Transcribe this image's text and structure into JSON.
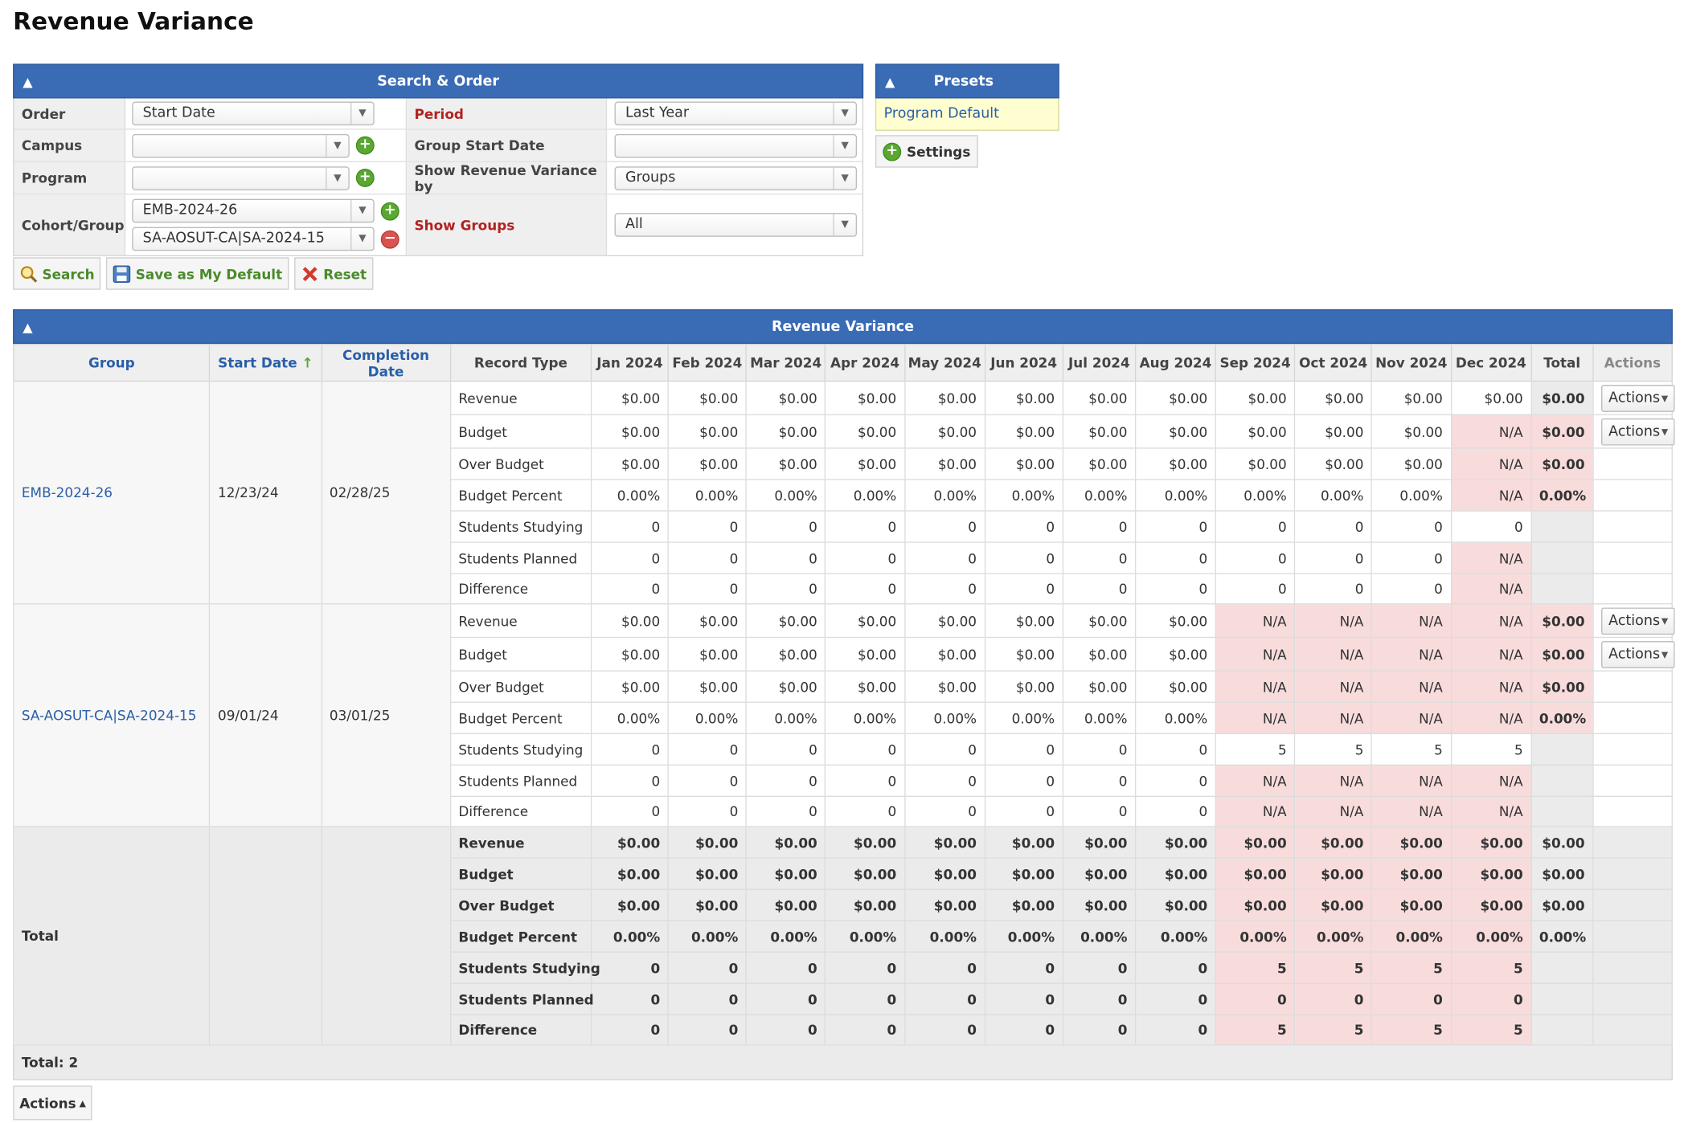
{
  "page_title": "Revenue Variance",
  "search": {
    "title": "Search & Order",
    "order_label": "Order",
    "order_value": "Start Date",
    "period_label": "Period",
    "period_value": "Last Year",
    "campus_label": "Campus",
    "campus_value": "",
    "group_start_label": "Group Start Date",
    "group_start_value": "",
    "program_label": "Program",
    "program_value": "",
    "show_by_label": "Show Revenue Variance by",
    "show_by_value": "Groups",
    "cohort_label": "Cohort/Group",
    "cohort_values": [
      "EMB-2024-26",
      "SA-AOSUT-CA|SA-2024-15"
    ],
    "show_groups_label": "Show Groups",
    "show_groups_value": "All"
  },
  "buttons": {
    "search": "Search",
    "save_default": "Save as My Default",
    "reset": "Reset"
  },
  "presets": {
    "title": "Presets",
    "items": [
      "Program Default"
    ],
    "settings": "Settings"
  },
  "table": {
    "title": "Revenue Variance",
    "headers": [
      "Group",
      "Start Date",
      "Completion Date",
      "Record Type",
      "Jan 2024",
      "Feb 2024",
      "Mar 2024",
      "Apr 2024",
      "May 2024",
      "Jun 2024",
      "Jul 2024",
      "Aug 2024",
      "Sep 2024",
      "Oct 2024",
      "Nov 2024",
      "Dec 2024",
      "Total",
      "Actions"
    ],
    "action_label": "Actions",
    "groups": [
      {
        "name": "EMB-2024-26",
        "start": "12/23/24",
        "completion": "02/28/25",
        "rows": [
          {
            "type": "Revenue",
            "cells": [
              "$0.00",
              "$0.00",
              "$0.00",
              "$0.00",
              "$0.00",
              "$0.00",
              "$0.00",
              "$0.00",
              "$0.00",
              "$0.00",
              "$0.00",
              "$0.00"
            ],
            "total": "$0.00",
            "actions": true
          },
          {
            "type": "Budget",
            "cells": [
              "$0.00",
              "$0.00",
              "$0.00",
              "$0.00",
              "$0.00",
              "$0.00",
              "$0.00",
              "$0.00",
              "$0.00",
              "$0.00",
              "$0.00",
              "N/A"
            ],
            "total": "$0.00",
            "actions": true
          },
          {
            "type": "Over Budget",
            "cells": [
              "$0.00",
              "$0.00",
              "$0.00",
              "$0.00",
              "$0.00",
              "$0.00",
              "$0.00",
              "$0.00",
              "$0.00",
              "$0.00",
              "$0.00",
              "N/A"
            ],
            "total": "$0.00",
            "actions": false
          },
          {
            "type": "Budget Percent",
            "cells": [
              "0.00%",
              "0.00%",
              "0.00%",
              "0.00%",
              "0.00%",
              "0.00%",
              "0.00%",
              "0.00%",
              "0.00%",
              "0.00%",
              "0.00%",
              "N/A"
            ],
            "total": "0.00%",
            "actions": false
          },
          {
            "type": "Students Studying",
            "cells": [
              "0",
              "0",
              "0",
              "0",
              "0",
              "0",
              "0",
              "0",
              "0",
              "0",
              "0",
              "0"
            ],
            "total": "",
            "actions": false
          },
          {
            "type": "Students Planned",
            "cells": [
              "0",
              "0",
              "0",
              "0",
              "0",
              "0",
              "0",
              "0",
              "0",
              "0",
              "0",
              "N/A"
            ],
            "total": "",
            "actions": false
          },
          {
            "type": "Difference",
            "cells": [
              "0",
              "0",
              "0",
              "0",
              "0",
              "0",
              "0",
              "0",
              "0",
              "0",
              "0",
              "N/A"
            ],
            "total": "",
            "actions": false
          }
        ]
      },
      {
        "name": "SA-AOSUT-CA|SA-2024-15",
        "start": "09/01/24",
        "completion": "03/01/25",
        "rows": [
          {
            "type": "Revenue",
            "cells": [
              "$0.00",
              "$0.00",
              "$0.00",
              "$0.00",
              "$0.00",
              "$0.00",
              "$0.00",
              "$0.00",
              "N/A",
              "N/A",
              "N/A",
              "N/A"
            ],
            "total": "$0.00",
            "actions": true
          },
          {
            "type": "Budget",
            "cells": [
              "$0.00",
              "$0.00",
              "$0.00",
              "$0.00",
              "$0.00",
              "$0.00",
              "$0.00",
              "$0.00",
              "N/A",
              "N/A",
              "N/A",
              "N/A"
            ],
            "total": "$0.00",
            "actions": true
          },
          {
            "type": "Over Budget",
            "cells": [
              "$0.00",
              "$0.00",
              "$0.00",
              "$0.00",
              "$0.00",
              "$0.00",
              "$0.00",
              "$0.00",
              "N/A",
              "N/A",
              "N/A",
              "N/A"
            ],
            "total": "$0.00",
            "actions": false
          },
          {
            "type": "Budget Percent",
            "cells": [
              "0.00%",
              "0.00%",
              "0.00%",
              "0.00%",
              "0.00%",
              "0.00%",
              "0.00%",
              "0.00%",
              "N/A",
              "N/A",
              "N/A",
              "N/A"
            ],
            "total": "0.00%",
            "actions": false
          },
          {
            "type": "Students Studying",
            "cells": [
              "0",
              "0",
              "0",
              "0",
              "0",
              "0",
              "0",
              "0",
              "5",
              "5",
              "5",
              "5"
            ],
            "total": "",
            "actions": false
          },
          {
            "type": "Students Planned",
            "cells": [
              "0",
              "0",
              "0",
              "0",
              "0",
              "0",
              "0",
              "0",
              "N/A",
              "N/A",
              "N/A",
              "N/A"
            ],
            "total": "",
            "actions": false
          },
          {
            "type": "Difference",
            "cells": [
              "0",
              "0",
              "0",
              "0",
              "0",
              "0",
              "0",
              "0",
              "N/A",
              "N/A",
              "N/A",
              "N/A"
            ],
            "total": "",
            "actions": false
          }
        ]
      }
    ],
    "totals": {
      "label": "Total",
      "rows": [
        {
          "type": "Revenue",
          "cells": [
            "$0.00",
            "$0.00",
            "$0.00",
            "$0.00",
            "$0.00",
            "$0.00",
            "$0.00",
            "$0.00",
            "$0.00",
            "$0.00",
            "$0.00",
            "$0.00"
          ],
          "total": "$0.00"
        },
        {
          "type": "Budget",
          "cells": [
            "$0.00",
            "$0.00",
            "$0.00",
            "$0.00",
            "$0.00",
            "$0.00",
            "$0.00",
            "$0.00",
            "$0.00",
            "$0.00",
            "$0.00",
            "$0.00"
          ],
          "total": "$0.00"
        },
        {
          "type": "Over Budget",
          "cells": [
            "$0.00",
            "$0.00",
            "$0.00",
            "$0.00",
            "$0.00",
            "$0.00",
            "$0.00",
            "$0.00",
            "$0.00",
            "$0.00",
            "$0.00",
            "$0.00"
          ],
          "total": "$0.00"
        },
        {
          "type": "Budget Percent",
          "cells": [
            "0.00%",
            "0.00%",
            "0.00%",
            "0.00%",
            "0.00%",
            "0.00%",
            "0.00%",
            "0.00%",
            "0.00%",
            "0.00%",
            "0.00%",
            "0.00%"
          ],
          "total": "0.00%"
        },
        {
          "type": "Students Studying",
          "cells": [
            "0",
            "0",
            "0",
            "0",
            "0",
            "0",
            "0",
            "0",
            "5",
            "5",
            "5",
            "5"
          ],
          "total": ""
        },
        {
          "type": "Students Planned",
          "cells": [
            "0",
            "0",
            "0",
            "0",
            "0",
            "0",
            "0",
            "0",
            "0",
            "0",
            "0",
            "0"
          ],
          "total": ""
        },
        {
          "type": "Difference",
          "cells": [
            "0",
            "0",
            "0",
            "0",
            "0",
            "0",
            "0",
            "0",
            "5",
            "5",
            "5",
            "5"
          ],
          "total": ""
        }
      ]
    },
    "footer_total": "Total: 2",
    "bottom_actions": "Actions"
  }
}
